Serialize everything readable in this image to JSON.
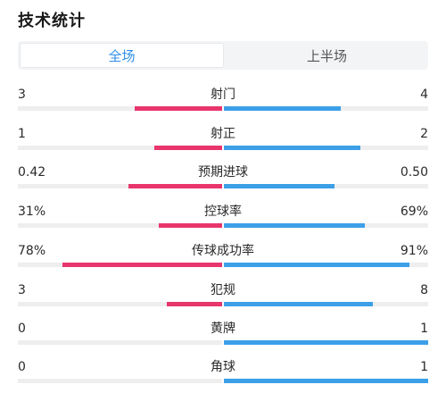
{
  "header": {
    "title": "技术统计"
  },
  "tabs": [
    {
      "label": "全场",
      "active": true
    },
    {
      "label": "上半场",
      "active": false
    }
  ],
  "colors": {
    "home": "#e8356c",
    "away": "#3c9fe8",
    "active_tab": "#2f8fe8"
  },
  "stats": [
    {
      "label": "射门",
      "home": "3",
      "away": "4",
      "home_ratio": 0.43,
      "away_ratio": 0.57
    },
    {
      "label": "射正",
      "home": "1",
      "away": "2",
      "home_ratio": 0.33,
      "away_ratio": 0.67
    },
    {
      "label": "预期进球",
      "home": "0.42",
      "away": "0.50",
      "home_ratio": 0.46,
      "away_ratio": 0.54
    },
    {
      "label": "控球率",
      "home": "31%",
      "away": "69%",
      "home_ratio": 0.31,
      "away_ratio": 0.69
    },
    {
      "label": "传球成功率",
      "home": "78%",
      "away": "91%",
      "home_ratio": 0.78,
      "away_ratio": 0.91
    },
    {
      "label": "犯规",
      "home": "3",
      "away": "8",
      "home_ratio": 0.27,
      "away_ratio": 0.73
    },
    {
      "label": "黄牌",
      "home": "0",
      "away": "1",
      "home_ratio": 0.0,
      "away_ratio": 1.0
    },
    {
      "label": "角球",
      "home": "0",
      "away": "1",
      "home_ratio": 0.0,
      "away_ratio": 1.0
    }
  ]
}
